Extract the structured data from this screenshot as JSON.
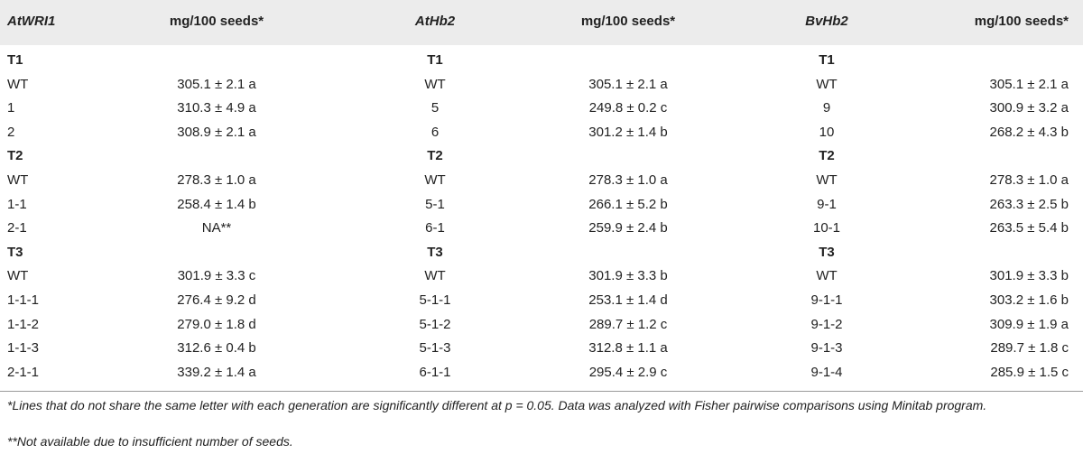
{
  "header": {
    "col1": "AtWRI1",
    "col2": "mg/100 seeds*",
    "col3": "AtHb2",
    "col4": "mg/100 seeds*",
    "col5": "BvHb2",
    "col6": "mg/100 seeds*"
  },
  "rows": [
    {
      "type": "gen",
      "c1": "T1",
      "c3": "T1",
      "c5": "T1"
    },
    {
      "type": "data",
      "c1": "WT",
      "c2": "305.1 ± 2.1 a",
      "c3": "WT",
      "c4": "305.1 ± 2.1 a",
      "c5": "WT",
      "c6": "305.1 ± 2.1 a"
    },
    {
      "type": "data",
      "c1": "1",
      "c2": "310.3 ± 4.9 a",
      "c3": "5",
      "c4": "249.8 ± 0.2 c",
      "c5": "9",
      "c6": "300.9 ± 3.2 a"
    },
    {
      "type": "data",
      "c1": "2",
      "c2": "308.9 ± 2.1 a",
      "c3": "6",
      "c4": "301.2 ± 1.4 b",
      "c5": "10",
      "c6": "268.2 ± 4.3 b"
    },
    {
      "type": "gen",
      "c1": "T2",
      "c3": "T2",
      "c5": "T2"
    },
    {
      "type": "data",
      "c1": "WT",
      "c2": "278.3 ± 1.0 a",
      "c3": "WT",
      "c4": "278.3 ± 1.0 a",
      "c5": "WT",
      "c6": "278.3 ± 1.0 a"
    },
    {
      "type": "data",
      "c1": "1-1",
      "c2": "258.4 ± 1.4 b",
      "c3": "5-1",
      "c4": "266.1 ± 5.2 b",
      "c5": "9-1",
      "c6": "263.3 ± 2.5 b"
    },
    {
      "type": "data",
      "c1": "2-1",
      "c2": "NA**",
      "c3": "6-1",
      "c4": "259.9 ± 2.4 b",
      "c5": "10-1",
      "c6": "263.5 ± 5.4 b"
    },
    {
      "type": "gen",
      "c1": "T3",
      "c3": "T3",
      "c5": "T3"
    },
    {
      "type": "data",
      "c1": "WT",
      "c2": "301.9 ± 3.3 c",
      "c3": "WT",
      "c4": "301.9 ± 3.3 b",
      "c5": "WT",
      "c6": "301.9 ± 3.3 b"
    },
    {
      "type": "data",
      "c1": "1-1-1",
      "c2": "276.4 ± 9.2 d",
      "c3": "5-1-1",
      "c4": "253.1 ± 1.4 d",
      "c5": "9-1-1",
      "c6": "303.2 ± 1.6 b"
    },
    {
      "type": "data",
      "c1": "1-1-2",
      "c2": "279.0 ± 1.8 d",
      "c3": "5-1-2",
      "c4": "289.7 ± 1.2 c",
      "c5": "9-1-2",
      "c6": "309.9 ± 1.9 a"
    },
    {
      "type": "data",
      "c1": "1-1-3",
      "c2": "312.6 ± 0.4 b",
      "c3": "5-1-3",
      "c4": "312.8 ± 1.1 a",
      "c5": "9-1-3",
      "c6": "289.7 ± 1.8 c"
    },
    {
      "type": "data",
      "c1": "2-1-1",
      "c2": "339.2 ± 1.4 a",
      "c3": "6-1-1",
      "c4": "295.4 ± 2.9 c",
      "c5": "9-1-4",
      "c6": "285.9 ± 1.5 c"
    }
  ],
  "footnotes": {
    "note1": "*Lines that do not share the same letter with each generation are significantly different at p = 0.05. Data was analyzed with Fisher pairwise comparisons using Minitab program.",
    "note2": "**Not available due to insufficient number of seeds."
  }
}
